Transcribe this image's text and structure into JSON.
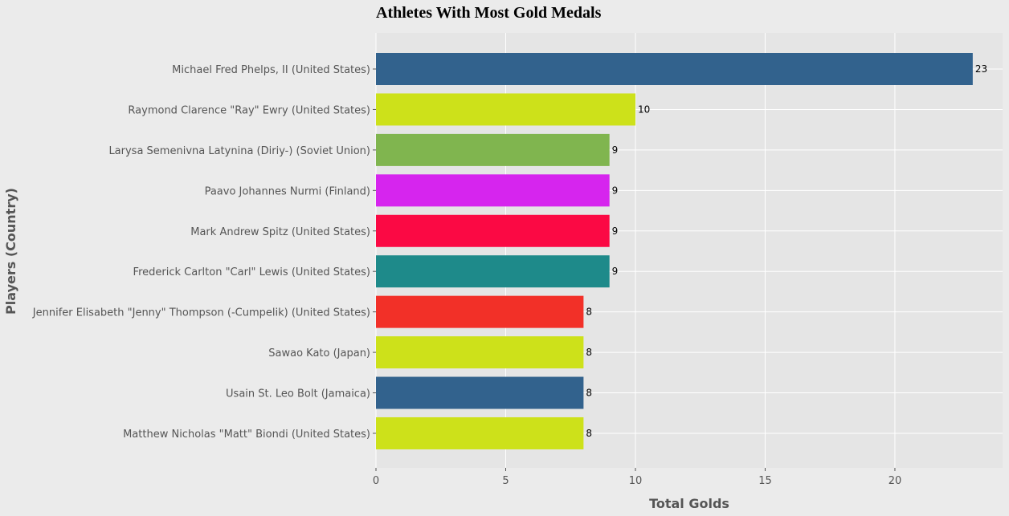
{
  "chart_data": {
    "type": "bar",
    "orientation": "horizontal",
    "title": "Athletes With Most Gold Medals",
    "xlabel": "Total Golds",
    "ylabel": "Players (Country)",
    "xlim": [
      0,
      24.15
    ],
    "xticks": [
      0,
      5,
      10,
      15,
      20
    ],
    "grid": true,
    "categories": [
      "Michael Fred Phelps, II (United States)",
      "Raymond Clarence \"Ray\" Ewry (United States)",
      "Larysa Semenivna Latynina (Diriy-) (Soviet Union)",
      "Paavo Johannes Nurmi (Finland)",
      "Mark Andrew Spitz (United States)",
      "Frederick Carlton \"Carl\" Lewis (United States)",
      "Jennifer Elisabeth \"Jenny\" Thompson (-Cumpelik) (United States)",
      "Sawao Kato (Japan)",
      "Usain St. Leo Bolt (Jamaica)",
      "Matthew Nicholas \"Matt\" Biondi (United States)"
    ],
    "values": [
      23,
      10,
      9,
      9,
      9,
      9,
      8,
      8,
      8,
      8
    ],
    "data_labels": [
      "23",
      "10",
      "9",
      "9",
      "9",
      "9",
      "8",
      "8",
      "8",
      "8"
    ],
    "colors": [
      "#32628d",
      "#cde11a",
      "#80b54f",
      "#d625ee",
      "#fb0944",
      "#1e8a8a",
      "#f23028",
      "#cde11a",
      "#32628d",
      "#cde11a"
    ]
  },
  "style": {
    "background": "#ebebeb",
    "plot_background": "#e5e5e5",
    "grid_color": "#ffffff"
  }
}
